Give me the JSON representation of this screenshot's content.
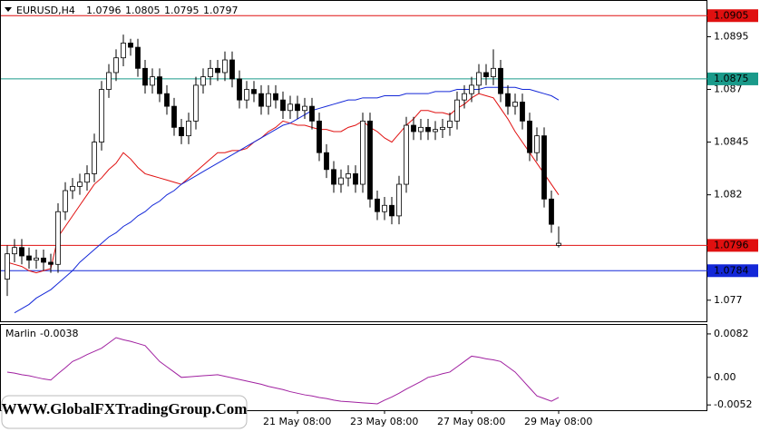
{
  "chart_data": [
    {
      "type": "candlestick",
      "title": "EURUSD,H4",
      "categories": [
        null,
        null,
        null,
        null,
        null,
        null,
        null,
        null,
        null,
        null,
        null,
        null,
        null,
        null,
        null,
        null,
        null,
        null,
        null,
        null,
        null,
        null,
        null,
        null,
        null,
        null,
        null,
        null,
        null,
        null,
        null,
        null,
        null,
        null,
        null,
        null,
        null,
        null,
        null,
        null,
        "21 May 08:00",
        null,
        null,
        null,
        null,
        null,
        null,
        null,
        null,
        null,
        null,
        null,
        "23 May 08:00",
        null,
        null,
        null,
        null,
        null,
        null,
        null,
        null,
        null,
        null,
        null,
        "27 May 08:00",
        null,
        null,
        null,
        null,
        null,
        null,
        null,
        null,
        null,
        null,
        null,
        "29 May 08:00"
      ],
      "open": [
        1.078,
        1.0792,
        1.0795,
        1.0791,
        1.0789,
        1.079,
        1.0788,
        1.0787,
        1.0812,
        1.0822,
        1.0824,
        1.0826,
        1.083,
        1.0845,
        1.087,
        1.0878,
        1.0885,
        1.0892,
        1.089,
        1.088,
        1.0872,
        1.0876,
        1.0868,
        1.0862,
        1.0852,
        1.0848,
        1.0855,
        1.0872,
        1.0876,
        1.088,
        1.0878,
        1.0884,
        1.0875,
        1.0865,
        1.087,
        1.0868,
        1.0862,
        1.0868,
        1.0865,
        1.086,
        1.0863,
        1.086,
        1.0862,
        1.0855,
        1.084,
        1.0832,
        1.0825,
        1.0828,
        1.083,
        1.0825,
        1.0855,
        1.0818,
        1.0812,
        1.0815,
        1.081,
        1.0825,
        1.0853,
        1.085,
        1.0852,
        1.085,
        1.0851,
        1.0852,
        1.0855,
        1.0865,
        1.0868,
        1.0872,
        1.0878,
        1.0876,
        1.088,
        1.0868,
        1.0862,
        1.0864,
        1.0855,
        1.084,
        1.0848,
        1.0818,
        1.0796
      ],
      "high": [
        1.0796,
        1.0799,
        1.0799,
        1.0795,
        1.0794,
        1.0794,
        1.0792,
        1.0816,
        1.0826,
        1.0828,
        1.083,
        1.0834,
        1.0849,
        1.0874,
        1.0882,
        1.0889,
        1.0896,
        1.0894,
        1.0894,
        1.0884,
        1.088,
        1.088,
        1.0872,
        1.0866,
        1.0856,
        1.0859,
        1.0876,
        1.088,
        1.0884,
        1.0884,
        1.0888,
        1.0888,
        1.0879,
        1.0874,
        1.0874,
        1.0872,
        1.0872,
        1.0872,
        1.0869,
        1.0867,
        1.0867,
        1.0866,
        1.0866,
        1.0859,
        1.0844,
        1.0836,
        1.0832,
        1.0834,
        1.0834,
        1.0859,
        1.0859,
        1.0822,
        1.0819,
        1.0819,
        1.0829,
        1.0857,
        1.0857,
        1.0856,
        1.0856,
        1.0855,
        1.0856,
        1.0859,
        1.0869,
        1.0872,
        1.0876,
        1.0882,
        1.0882,
        1.0889,
        1.0884,
        1.0872,
        1.0868,
        1.0868,
        1.0859,
        1.0852,
        1.0852,
        1.0822,
        1.0805
      ],
      "low": [
        1.0772,
        1.0788,
        1.0787,
        1.0785,
        1.0785,
        1.0784,
        1.0783,
        1.0783,
        1.0808,
        1.0818,
        1.082,
        1.0822,
        1.0826,
        1.0841,
        1.0866,
        1.0874,
        1.0881,
        1.0886,
        1.0876,
        1.0868,
        1.0868,
        1.0864,
        1.0858,
        1.0848,
        1.0844,
        1.0844,
        1.0851,
        1.0868,
        1.0872,
        1.0874,
        1.0874,
        1.0871,
        1.0861,
        1.0861,
        1.0864,
        1.0858,
        1.0858,
        1.0861,
        1.0856,
        1.0856,
        1.0856,
        1.0856,
        1.0851,
        1.0836,
        1.0828,
        1.0821,
        1.0821,
        1.0824,
        1.0821,
        1.0821,
        1.0814,
        1.0808,
        1.0808,
        1.0806,
        1.0806,
        1.0821,
        1.0846,
        1.0846,
        1.0846,
        1.0846,
        1.0847,
        1.0848,
        1.0851,
        1.0861,
        1.0864,
        1.0868,
        1.0872,
        1.0872,
        1.0864,
        1.0858,
        1.0858,
        1.0851,
        1.0836,
        1.0836,
        1.0814,
        1.0802,
        1.0795
      ],
      "close": [
        1.0792,
        1.0795,
        1.0791,
        1.0789,
        1.079,
        1.0788,
        1.0787,
        1.0812,
        1.0822,
        1.0824,
        1.0826,
        1.083,
        1.0845,
        1.087,
        1.0878,
        1.0885,
        1.0892,
        1.089,
        1.088,
        1.0872,
        1.0876,
        1.0868,
        1.0862,
        1.0852,
        1.0848,
        1.0855,
        1.0872,
        1.0876,
        1.088,
        1.0878,
        1.0884,
        1.0875,
        1.0865,
        1.087,
        1.0868,
        1.0862,
        1.0868,
        1.0865,
        1.086,
        1.0863,
        1.086,
        1.0862,
        1.0855,
        1.084,
        1.0832,
        1.0825,
        1.0828,
        1.083,
        1.0825,
        1.0855,
        1.0818,
        1.0812,
        1.0815,
        1.081,
        1.0825,
        1.0853,
        1.085,
        1.0852,
        1.085,
        1.0851,
        1.0852,
        1.0855,
        1.0865,
        1.0868,
        1.0872,
        1.0878,
        1.0876,
        1.088,
        1.0868,
        1.0862,
        1.0864,
        1.0855,
        1.084,
        1.0848,
        1.0818,
        1.0806,
        1.0797
      ],
      "series": [
        {
          "color": "#e01010",
          "values": [
            1.0788,
            1.0787,
            1.0786,
            1.0784,
            1.0783,
            1.0784,
            1.0785,
            1.08,
            1.0805,
            1.081,
            1.0815,
            1.082,
            1.0825,
            1.0828,
            1.0832,
            1.0835,
            1.084,
            1.0837,
            1.0833,
            1.083,
            1.0829,
            1.0828,
            1.0827,
            1.0826,
            1.0825,
            1.0828,
            1.0831,
            1.0834,
            1.0837,
            1.084,
            1.084,
            1.0841,
            1.0841,
            1.0842,
            1.0845,
            1.0847,
            1.085,
            1.0852,
            1.0855,
            1.0854,
            1.0853,
            1.0853,
            1.0852,
            1.0851,
            1.0851,
            1.085,
            1.085,
            1.0852,
            1.0853,
            1.0855,
            1.0852,
            1.085,
            1.0847,
            1.0845,
            1.0849,
            1.0853,
            1.0856,
            1.086,
            1.086,
            1.0859,
            1.0859,
            1.0858,
            1.0861,
            1.0863,
            1.0866,
            1.0868,
            1.0867,
            1.0866,
            1.0861,
            1.0856,
            1.085,
            1.0845,
            1.084,
            1.0835,
            1.083,
            1.0825,
            1.082
          ]
        },
        {
          "color": "#1428d8",
          "values": [
            null,
            1.0764,
            1.0766,
            1.0768,
            1.0771,
            1.0773,
            1.0775,
            1.0778,
            1.0781,
            1.0784,
            1.0788,
            1.0791,
            1.0794,
            1.0797,
            1.08,
            1.0802,
            1.0805,
            1.0807,
            1.081,
            1.0812,
            1.0815,
            1.0817,
            1.082,
            1.0822,
            1.0825,
            1.0827,
            1.0829,
            1.0831,
            1.0833,
            1.0835,
            1.0837,
            1.0839,
            1.0841,
            1.0843,
            1.0845,
            1.0847,
            1.0849,
            1.0851,
            1.0853,
            1.0854,
            1.0856,
            1.0858,
            1.086,
            1.0861,
            1.0862,
            1.0863,
            1.0864,
            1.0865,
            1.0865,
            1.0866,
            1.0866,
            1.0866,
            1.0867,
            1.0867,
            1.0867,
            1.0868,
            1.0868,
            1.0868,
            1.0868,
            1.0869,
            1.0869,
            1.0869,
            1.087,
            1.087,
            1.087,
            1.087,
            1.0871,
            1.0871,
            1.0871,
            1.0871,
            1.0871,
            1.087,
            1.087,
            1.0869,
            1.0868,
            1.0867,
            1.0865
          ]
        }
      ],
      "hlines": [
        {
          "value": 1.0905,
          "color": "#e01010"
        },
        {
          "value": 1.0875,
          "color": "#1a9a8a"
        },
        {
          "value": 1.0796,
          "color": "#e01010"
        },
        {
          "value": 1.0784,
          "color": "#1428d8"
        }
      ],
      "ylim": [
        1.076,
        1.0912
      ],
      "yticks": [
        1.0895,
        1.087,
        1.0845,
        1.082,
        1.077
      ],
      "up_color": "#ffffff",
      "down_color": "#000000",
      "watermark": "WWW.GlobalFXTradingGroup.Com"
    },
    {
      "type": "line",
      "title": "Marlin",
      "last_value": -0.0038,
      "color": "#a020a0",
      "values": [
        0.001,
        0.0008,
        0.0005,
        0.0003,
        0.0,
        -0.0003,
        -0.0005,
        0.0007,
        0.0018,
        0.003,
        0.0036,
        0.0043,
        0.0049,
        0.0055,
        0.0065,
        0.0075,
        0.0071,
        0.0068,
        0.0064,
        0.006,
        0.0045,
        0.003,
        0.002,
        0.001,
        0.0,
        0.0001,
        0.0002,
        0.0003,
        0.0004,
        0.0005,
        0.0002,
        -0.0001,
        -0.0004,
        -0.0007,
        -0.001,
        -0.0013,
        -0.0017,
        -0.002,
        -0.0023,
        -0.0027,
        -0.003,
        -0.0033,
        -0.0035,
        -0.0038,
        -0.004,
        -0.0043,
        -0.0045,
        -0.0046,
        -0.0047,
        -0.0048,
        -0.0049,
        -0.005,
        -0.0043,
        -0.0037,
        -0.003,
        -0.0022,
        -0.0015,
        -0.0008,
        0.0,
        0.0003,
        0.0007,
        0.001,
        0.002,
        0.003,
        0.004,
        0.0038,
        0.0035,
        0.0033,
        0.003,
        0.002,
        0.001,
        -0.0005,
        -0.002,
        -0.0035,
        -0.004,
        -0.0045,
        -0.0038
      ],
      "ylim": [
        -0.0062,
        0.0099
      ],
      "yticks": [
        0.0082,
        {
          "value": 0,
          "label": "0.00"
        },
        -0.0052
      ]
    }
  ]
}
